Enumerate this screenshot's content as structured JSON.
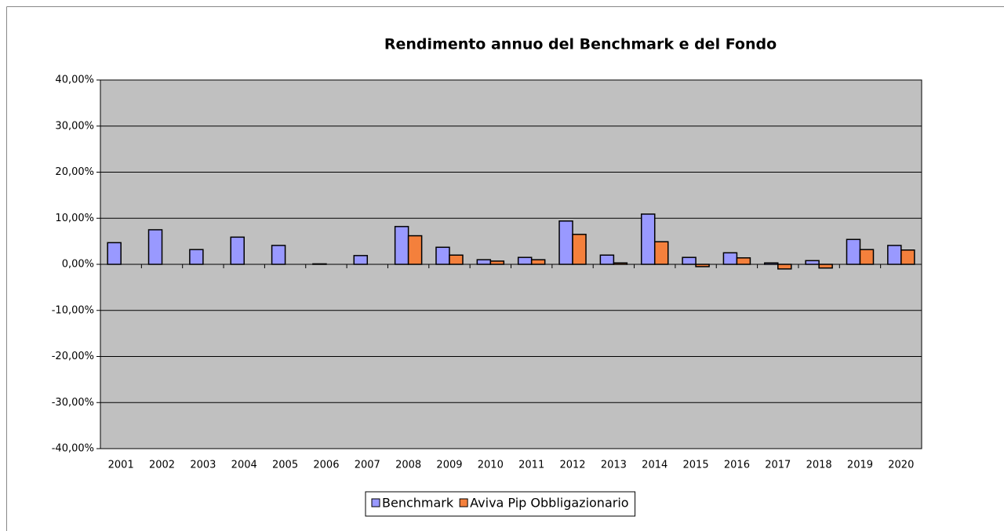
{
  "chart_data": {
    "type": "bar",
    "title": "Rendimento annuo del Benchmark e del Fondo",
    "categories": [
      "2001",
      "2002",
      "2003",
      "2004",
      "2005",
      "2006",
      "2007",
      "2008",
      "2009",
      "2010",
      "2011",
      "2012",
      "2013",
      "2014",
      "2015",
      "2016",
      "2017",
      "2018",
      "2019",
      "2020"
    ],
    "series": [
      {
        "name": "Benchmark",
        "color": "#9999ff",
        "values": [
          4.7,
          7.5,
          3.2,
          5.9,
          4.1,
          0.1,
          1.9,
          8.2,
          3.7,
          1.0,
          1.5,
          9.4,
          2.0,
          10.9,
          1.5,
          2.5,
          0.3,
          0.8,
          5.4,
          4.1
        ]
      },
      {
        "name": "Aviva Pip Obbligazionario",
        "color": "#f4803c",
        "values": [
          null,
          null,
          null,
          null,
          null,
          null,
          null,
          6.2,
          2.0,
          0.7,
          1.0,
          6.5,
          0.3,
          4.9,
          -0.5,
          1.4,
          -1.0,
          -0.8,
          3.2,
          3.1
        ]
      }
    ],
    "ylim": [
      -40,
      40
    ],
    "yticks": [
      {
        "value": -40,
        "label": "-40,00%"
      },
      {
        "value": -30,
        "label": "-30,00%"
      },
      {
        "value": -20,
        "label": "-20,00%"
      },
      {
        "value": -10,
        "label": "-10,00%"
      },
      {
        "value": 0,
        "label": "0,00%"
      },
      {
        "value": 10,
        "label": "10,00%"
      },
      {
        "value": 20,
        "label": "20,00%"
      },
      {
        "value": 30,
        "label": "30,00%"
      },
      {
        "value": 40,
        "label": "40,00%"
      }
    ],
    "grid": true,
    "plot_background": "#c0c0c0",
    "legend": "bottom"
  }
}
